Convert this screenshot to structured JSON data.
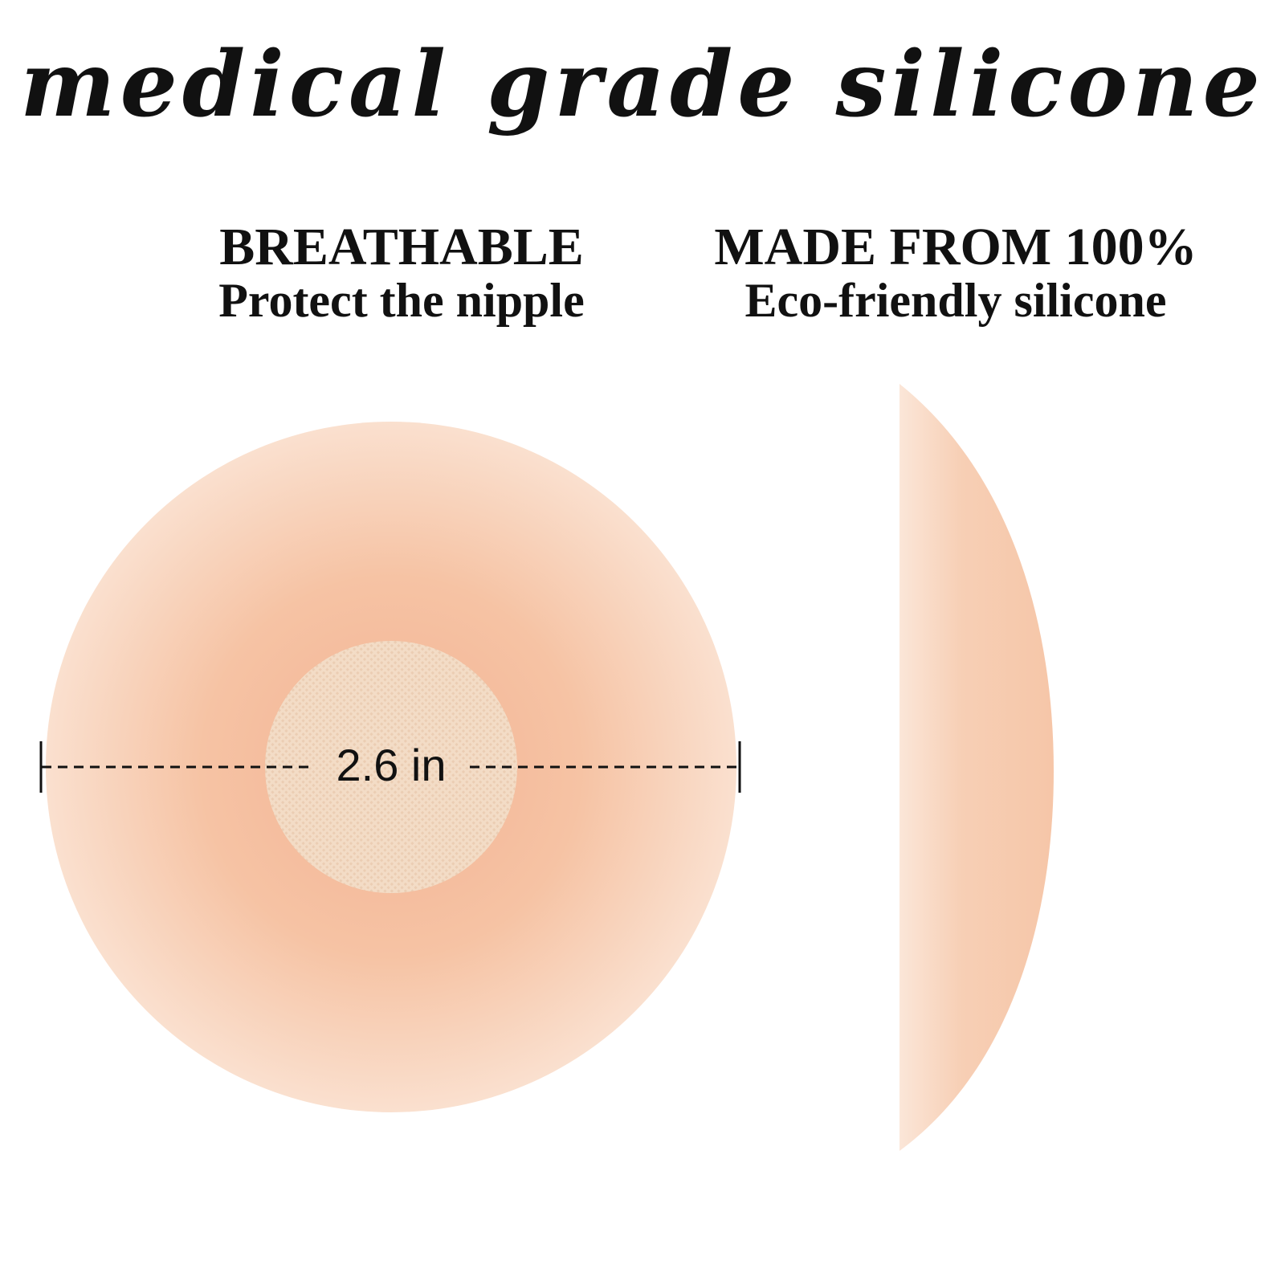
{
  "title": "medical grade silicone",
  "features": [
    {
      "heading": "BREATHABLE",
      "subtext": "Protect the nipple"
    },
    {
      "heading": "MADE FROM 100%",
      "subtext": "Eco-friendly silicone"
    }
  ],
  "dimension_label": "2.6 in",
  "colors": {
    "silicone": "#f6c6a6",
    "silicone_edge": "#fbe3d3",
    "fabric": "#f2d9c2",
    "text": "#111111"
  }
}
